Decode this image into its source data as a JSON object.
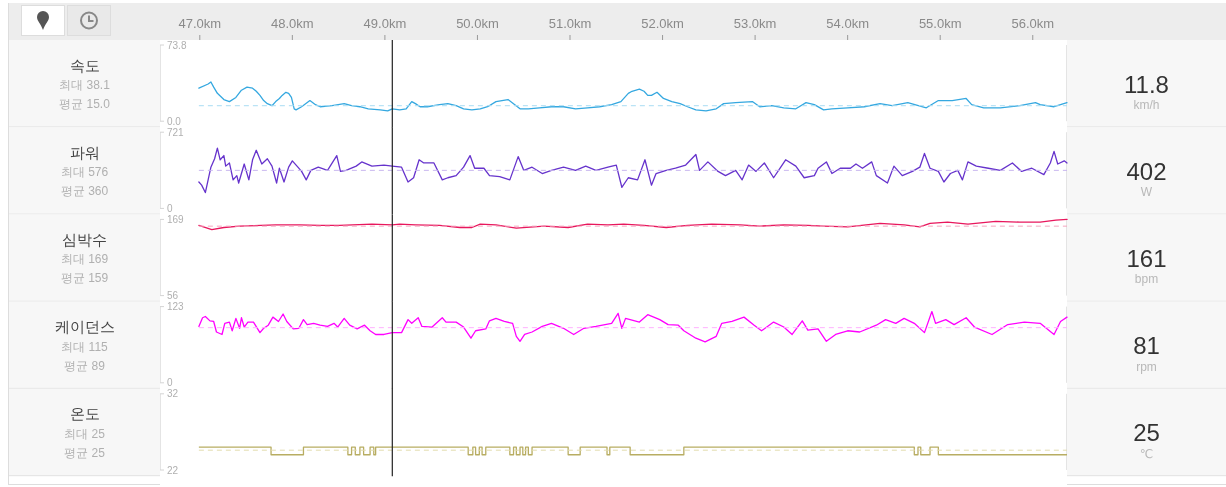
{
  "chart_data": [
    {
      "type": "line",
      "title": "속도",
      "xlim": [
        46.57,
        56.37
      ],
      "xticks": [
        {
          "value": 47,
          "label": "47.0km"
        },
        {
          "value": 48,
          "label": "48.0km"
        },
        {
          "value": 49,
          "label": "49.0km"
        },
        {
          "value": 50,
          "label": "50.0km"
        },
        {
          "value": 51,
          "label": "51.0km"
        },
        {
          "value": 52,
          "label": "52.0km"
        },
        {
          "value": 53,
          "label": "53.0km"
        },
        {
          "value": 54,
          "label": "54.0km"
        },
        {
          "value": 55,
          "label": "55.0km"
        },
        {
          "value": 56,
          "label": "56.0km"
        }
      ],
      "ylim": [
        0,
        73.8
      ],
      "yticks": [
        {
          "value": 0,
          "label": "0.0"
        },
        73.8
      ],
      "series": [
        {
          "color": "#35a8e0",
          "x": [
            46.99,
            47.09,
            47.12,
            47.15,
            47.19,
            47.26,
            47.32,
            47.39,
            47.45,
            47.51,
            47.57,
            47.61,
            47.65,
            47.69,
            47.73,
            47.78,
            47.82,
            47.86,
            47.89,
            47.93,
            47.96,
            47.99,
            48.02,
            48.04,
            48.1,
            48.19,
            48.25,
            48.3,
            48.43,
            48.56,
            48.64,
            48.73,
            48.82,
            48.95,
            49.03,
            49.08,
            49.16,
            49.23,
            49.29,
            49.33,
            49.38,
            49.46,
            49.59,
            49.68,
            49.77,
            49.85,
            49.94,
            50.03,
            50.11,
            50.2,
            50.33,
            50.39,
            50.46,
            50.55,
            50.67,
            50.8,
            50.93,
            51.06,
            51.19,
            51.32,
            51.45,
            51.55,
            51.63,
            51.67,
            51.75,
            51.8,
            51.84,
            51.88,
            51.94,
            52.01,
            52.1,
            52.19,
            52.27,
            52.36,
            52.47,
            52.58,
            52.66,
            52.79,
            52.97,
            53.05,
            53.18,
            53.31,
            53.44,
            53.55,
            53.64,
            53.74,
            53.83,
            54.0,
            54.18,
            54.35,
            54.48,
            54.65,
            54.85,
            54.98,
            55.13,
            55.28,
            55.34,
            55.47,
            55.65,
            55.86,
            56.03,
            56.08,
            56.23,
            56.37
          ],
          "values": [
            32,
            36,
            38,
            33,
            27,
            21,
            19,
            23,
            30,
            33,
            32,
            29,
            25,
            20,
            17,
            15,
            19,
            22,
            25,
            28,
            27,
            23,
            12,
            11,
            14,
            20,
            16,
            14,
            15,
            17,
            15,
            14,
            12,
            11,
            10,
            12,
            11,
            12,
            19,
            17,
            14,
            14,
            16,
            17,
            15,
            12,
            11,
            12,
            14,
            19,
            21,
            17,
            12,
            12,
            13,
            14,
            14,
            12,
            13,
            14,
            16,
            19,
            27,
            29,
            31,
            29,
            25,
            25,
            28,
            22,
            19,
            17,
            14,
            11,
            10,
            12,
            17,
            18,
            19,
            14,
            15,
            13,
            12,
            18,
            16,
            11,
            12,
            13,
            14,
            17,
            15,
            18,
            13,
            20,
            20,
            22,
            16,
            13,
            13,
            15,
            18,
            16,
            14,
            18
          ]
        }
      ],
      "ref_lines": [
        {
          "axis": "y",
          "value": 15.0,
          "color": "#a9dcf3",
          "line_style": "dashed"
        },
        {
          "axis": "x",
          "value": 49.08,
          "color": "#222222",
          "line_style": "solid"
        }
      ],
      "annotations": [
        "최대 38.1",
        "평균 15.0",
        "11.8",
        "km/h"
      ]
    },
    {
      "type": "line",
      "title": "파워",
      "xlim": [
        46.57,
        56.37
      ],
      "tick_labels": "y",
      "ylim": [
        0,
        721
      ],
      "yticks": [
        0,
        721
      ],
      "series": [
        {
          "color": "#6633cc",
          "x": [
            46.99,
            47.02,
            47.06,
            47.09,
            47.12,
            47.16,
            47.19,
            47.22,
            47.26,
            47.28,
            47.32,
            47.36,
            47.4,
            47.42,
            47.48,
            47.53,
            47.57,
            47.61,
            47.67,
            47.73,
            47.78,
            47.83,
            47.86,
            47.91,
            47.96,
            48.0,
            48.06,
            48.1,
            48.15,
            48.2,
            48.28,
            48.38,
            48.48,
            48.52,
            48.58,
            48.69,
            48.75,
            48.86,
            48.99,
            49.08,
            49.18,
            49.25,
            49.31,
            49.37,
            49.42,
            49.53,
            49.62,
            49.68,
            49.77,
            49.85,
            49.92,
            49.97,
            50.07,
            50.13,
            50.24,
            50.35,
            50.44,
            50.5,
            50.59,
            50.7,
            50.8,
            50.93,
            51.06,
            51.17,
            51.28,
            51.41,
            51.5,
            51.56,
            51.63,
            51.73,
            51.81,
            51.88,
            51.93,
            52.04,
            52.14,
            52.25,
            52.36,
            52.4,
            52.49,
            52.6,
            52.68,
            52.79,
            52.86,
            52.93,
            53.01,
            53.1,
            53.2,
            53.27,
            53.33,
            53.44,
            53.53,
            53.64,
            53.68,
            53.77,
            53.83,
            53.92,
            54.03,
            54.09,
            54.16,
            54.26,
            54.31,
            54.43,
            54.5,
            54.59,
            54.7,
            54.78,
            54.83,
            54.89,
            54.98,
            55.04,
            55.11,
            55.19,
            55.24,
            55.3,
            55.39,
            55.52,
            55.65,
            55.78,
            55.88,
            55.99,
            56.12,
            56.19,
            56.23,
            56.27,
            56.34,
            56.37
          ],
          "values": [
            250,
            220,
            150,
            270,
            390,
            470,
            570,
            460,
            500,
            400,
            430,
            270,
            310,
            240,
            420,
            270,
            460,
            550,
            420,
            470,
            400,
            240,
            380,
            250,
            390,
            450,
            390,
            350,
            270,
            360,
            390,
            360,
            500,
            350,
            360,
            400,
            440,
            400,
            410,
            400,
            390,
            250,
            290,
            460,
            430,
            430,
            270,
            290,
            310,
            390,
            500,
            380,
            380,
            310,
            300,
            270,
            490,
            360,
            390,
            330,
            360,
            390,
            360,
            400,
            360,
            390,
            410,
            200,
            290,
            270,
            460,
            220,
            330,
            360,
            380,
            410,
            510,
            360,
            440,
            350,
            310,
            360,
            270,
            410,
            350,
            430,
            290,
            380,
            460,
            400,
            290,
            310,
            380,
            440,
            330,
            380,
            380,
            420,
            380,
            440,
            310,
            240,
            400,
            310,
            350,
            390,
            520,
            380,
            350,
            250,
            330,
            360,
            270,
            440,
            400,
            380,
            360,
            430,
            350,
            380,
            320,
            430,
            540,
            420,
            450,
            430
          ]
        }
      ],
      "ref_lines": [
        {
          "axis": "y",
          "value": 360,
          "color": "#c8b6ef",
          "line_style": "dashed"
        },
        {
          "axis": "x",
          "value": 49.08,
          "color": "#222222",
          "line_style": "solid"
        }
      ],
      "annotations": [
        "최대 576",
        "평균 360",
        "402",
        "W"
      ]
    },
    {
      "type": "line",
      "title": "심박수",
      "xlim": [
        46.57,
        56.37
      ],
      "tick_labels": "y",
      "ylim": [
        56,
        169
      ],
      "yticks": [
        56,
        169
      ],
      "series": [
        {
          "color": "#e8175d",
          "x": [
            46.99,
            47.13,
            47.26,
            47.43,
            47.82,
            48.08,
            48.3,
            48.51,
            48.86,
            49.08,
            49.16,
            49.33,
            49.59,
            49.81,
            49.94,
            50.03,
            50.2,
            50.42,
            50.72,
            50.98,
            51.19,
            51.41,
            51.58,
            51.8,
            52.04,
            52.27,
            52.53,
            52.84,
            53.05,
            53.31,
            53.57,
            53.74,
            54.0,
            54.35,
            54.61,
            54.78,
            54.89,
            55.08,
            55.3,
            55.6,
            55.86,
            56.08,
            56.25,
            56.37
          ],
          "values": [
            160,
            154,
            157,
            159,
            161,
            161,
            160,
            160,
            162,
            161,
            162,
            161,
            160,
            157,
            157,
            162,
            161,
            156,
            159,
            157,
            162,
            161,
            162,
            160,
            157,
            160,
            162,
            161,
            159,
            161,
            160,
            159,
            158,
            163,
            161,
            158,
            163,
            165,
            162,
            166,
            165,
            165,
            168,
            169
          ]
        }
      ],
      "ref_lines": [
        {
          "axis": "y",
          "value": 159,
          "color": "#f5a6bf",
          "line_style": "dashed"
        },
        {
          "axis": "x",
          "value": 49.08,
          "color": "#222222",
          "line_style": "solid"
        }
      ],
      "annotations": [
        "최대 169",
        "평균 159",
        "161",
        "bpm"
      ]
    },
    {
      "type": "line",
      "title": "케이던스",
      "xlim": [
        46.57,
        56.37
      ],
      "tick_labels": "y",
      "ylim": [
        0,
        123
      ],
      "yticks": [
        0,
        123
      ],
      "series": [
        {
          "color": "#ff00ff",
          "x": [
            46.99,
            47.03,
            47.06,
            47.11,
            47.15,
            47.18,
            47.24,
            47.27,
            47.32,
            47.35,
            47.39,
            47.43,
            47.45,
            47.48,
            47.52,
            47.58,
            47.65,
            47.69,
            47.74,
            47.79,
            47.85,
            47.9,
            47.94,
            48.01,
            48.07,
            48.12,
            48.16,
            48.23,
            48.3,
            48.38,
            48.45,
            48.49,
            48.56,
            48.62,
            48.7,
            48.78,
            48.84,
            48.9,
            48.99,
            49.08,
            49.18,
            49.25,
            49.29,
            49.36,
            49.4,
            49.51,
            49.62,
            49.66,
            49.77,
            49.85,
            49.93,
            49.98,
            50.09,
            50.13,
            50.2,
            50.29,
            50.38,
            50.42,
            50.46,
            50.51,
            50.59,
            50.7,
            50.8,
            50.93,
            51.04,
            51.15,
            51.28,
            51.45,
            51.52,
            51.56,
            51.6,
            51.75,
            51.84,
            51.97,
            52.06,
            52.17,
            52.23,
            52.36,
            52.46,
            52.58,
            52.64,
            52.75,
            52.88,
            52.99,
            53.07,
            53.2,
            53.31,
            53.4,
            53.51,
            53.57,
            53.68,
            53.77,
            53.87,
            54.0,
            54.13,
            54.31,
            54.41,
            54.52,
            54.61,
            54.72,
            54.83,
            54.91,
            54.95,
            55.06,
            55.15,
            55.28,
            55.37,
            55.56,
            55.73,
            55.91,
            56.08,
            56.23,
            56.3,
            56.37
          ],
          "values": [
            91,
            105,
            107,
            100,
            99,
            82,
            78,
            96,
            98,
            84,
            104,
            88,
            105,
            90,
            98,
            98,
            81,
            88,
            93,
            106,
            99,
            111,
            99,
            87,
            88,
            102,
            94,
            96,
            93,
            91,
            96,
            90,
            104,
            93,
            87,
            93,
            84,
            78,
            78,
            81,
            81,
            102,
            96,
            105,
            91,
            90,
            105,
            98,
            98,
            90,
            72,
            84,
            87,
            100,
            104,
            99,
            96,
            75,
            67,
            78,
            82,
            91,
            96,
            88,
            78,
            88,
            91,
            96,
            112,
            88,
            104,
            98,
            110,
            102,
            94,
            93,
            84,
            72,
            66,
            75,
            96,
            99,
            106,
            93,
            84,
            98,
            90,
            78,
            100,
            85,
            87,
            67,
            78,
            84,
            82,
            93,
            102,
            96,
            104,
            96,
            81,
            115,
            96,
            102,
            94,
            105,
            90,
            78,
            94,
            98,
            96,
            78,
            99,
            106
          ]
        }
      ],
      "ref_lines": [
        {
          "axis": "y",
          "value": 89,
          "color": "#ffb0ff",
          "line_style": "dashed"
        },
        {
          "axis": "x",
          "value": 49.08,
          "color": "#222222",
          "line_style": "solid"
        }
      ],
      "annotations": [
        "최대 115",
        "평균 89",
        "81",
        "rpm"
      ]
    },
    {
      "type": "step",
      "title": "온도",
      "xlim": [
        46.57,
        56.37
      ],
      "tick_labels": "y",
      "ylim": [
        22,
        32
      ],
      "yticks": [
        22,
        32
      ],
      "series": [
        {
          "color": "#b8ad62",
          "x": [
            46.99,
            47.77,
            48.12,
            48.6,
            48.64,
            48.68,
            48.73,
            48.77,
            48.84,
            48.88,
            48.9,
            49.9,
            49.95,
            49.98,
            50.02,
            50.05,
            50.09,
            50.35,
            50.39,
            50.42,
            50.46,
            50.49,
            50.52,
            50.55,
            50.59,
            50.98,
            51.11,
            51.4,
            51.43,
            51.65,
            52.23,
            54.72,
            54.76,
            54.79,
            54.89,
            54.98,
            56.37
          ],
          "values": [
            25,
            24,
            25,
            24,
            25,
            24,
            25,
            24,
            25,
            24,
            25,
            24,
            25,
            24,
            25,
            24,
            25,
            24,
            25,
            24,
            25,
            24,
            25,
            24,
            25,
            24,
            25,
            24,
            25,
            24,
            25,
            24,
            25,
            24,
            25,
            24,
            24
          ]
        }
      ],
      "ref_lines": [
        {
          "axis": "y",
          "value": 24.6,
          "color": "#e3dcae",
          "line_style": "dashed"
        },
        {
          "axis": "x",
          "value": 49.08,
          "color": "#222222",
          "line_style": "solid"
        }
      ],
      "annotations": [
        "최대 25",
        "평균 25",
        "25",
        "℃"
      ]
    }
  ]
}
